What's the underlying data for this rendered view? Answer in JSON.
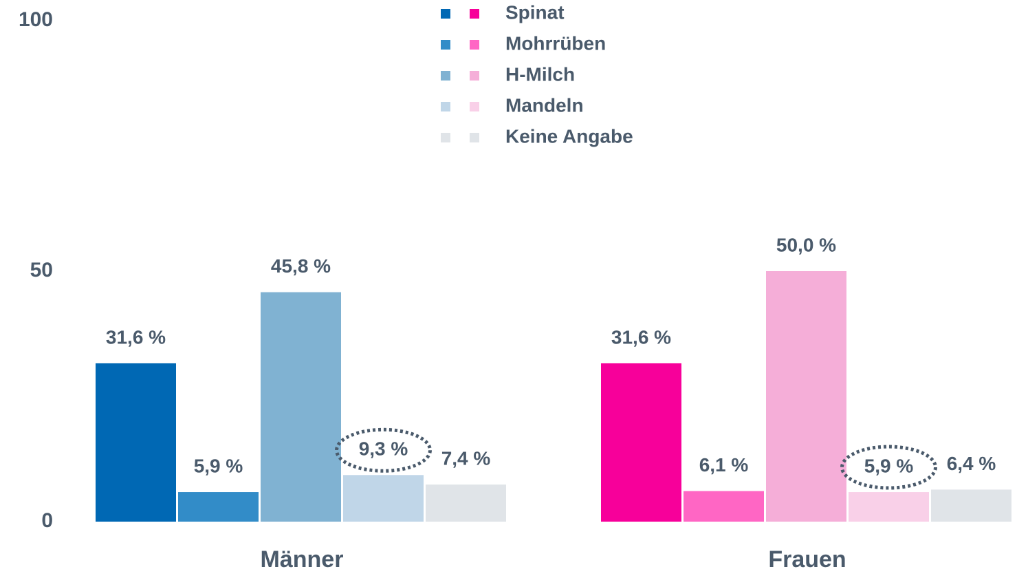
{
  "chart_data": {
    "type": "bar",
    "categories": [
      "Männer",
      "Frauen"
    ],
    "series": [
      {
        "name": "Spinat",
        "colors": [
          "#0068b4",
          "#f7009a"
        ],
        "values": [
          31.6,
          31.6
        ],
        "value_labels": [
          "31,6 %",
          "31,6 %"
        ]
      },
      {
        "name": "Mohrrüben",
        "colors": [
          "#328cc8",
          "#ff66c4"
        ],
        "values": [
          5.9,
          6.1
        ],
        "value_labels": [
          "5,9 %",
          "6,1 %"
        ]
      },
      {
        "name": "H-Milch",
        "colors": [
          "#80b2d2",
          "#f5aed8"
        ],
        "values": [
          45.8,
          50.0
        ],
        "value_labels": [
          "45,8 %",
          "50,0 %"
        ]
      },
      {
        "name": "Mandeln",
        "colors": [
          "#c0d6e8",
          "#f9d0e8"
        ],
        "values": [
          9.3,
          5.9
        ],
        "value_labels": [
          "9,3 %",
          "5,9 %"
        ],
        "highlighted": true
      },
      {
        "name": "Keine Angabe",
        "colors": [
          "#e0e4e8",
          "#e0e4e8"
        ],
        "values": [
          7.4,
          6.4
        ],
        "value_labels": [
          "7,4 %",
          "6,4 %"
        ]
      }
    ],
    "ylim": [
      0,
      100
    ],
    "yticks": [
      0,
      50,
      100
    ],
    "grid": false
  }
}
